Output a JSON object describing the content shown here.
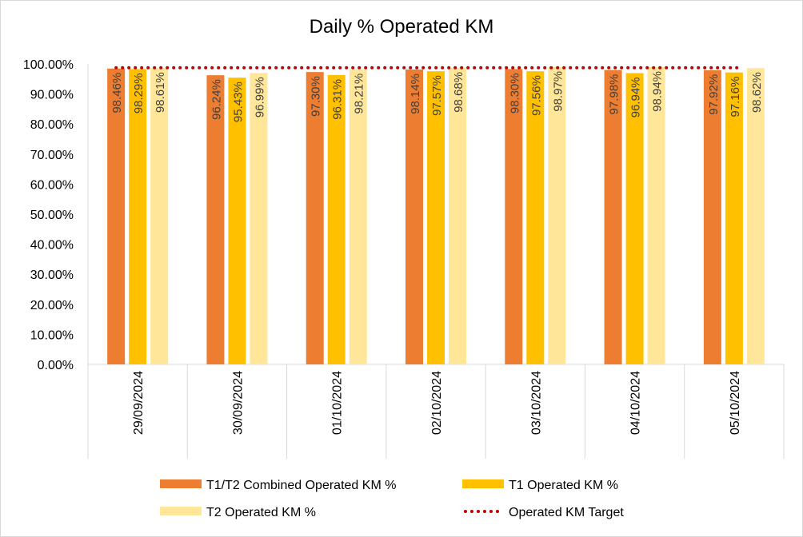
{
  "chart_data": {
    "type": "bar",
    "title": "Daily % Operated KM",
    "categories": [
      "29/09/2024",
      "30/09/2024",
      "01/10/2024",
      "02/10/2024",
      "03/10/2024",
      "04/10/2024",
      "05/10/2024"
    ],
    "series": [
      {
        "name": "T1/T2 Combined Operated KM %",
        "color": "#ED7D31",
        "values": [
          98.46,
          96.24,
          97.3,
          98.14,
          98.3,
          97.98,
          97.92
        ],
        "labels": [
          "98.46%",
          "96.24%",
          "97.30%",
          "98.14%",
          "98.30%",
          "97.98%",
          "97.92%"
        ]
      },
      {
        "name": "T1 Operated KM %",
        "color": "#FFC000",
        "values": [
          98.29,
          95.43,
          96.31,
          97.57,
          97.56,
          96.94,
          97.16
        ],
        "labels": [
          "98.29%",
          "95.43%",
          "96.31%",
          "97.57%",
          "97.56%",
          "96.94%",
          "97.16%"
        ]
      },
      {
        "name": "T2 Operated KM %",
        "color": "#FFE699",
        "values": [
          98.61,
          96.99,
          98.21,
          98.68,
          98.97,
          98.94,
          98.62
        ],
        "labels": [
          "98.61%",
          "96.99%",
          "98.21%",
          "98.68%",
          "98.97%",
          "98.94%",
          "98.62%"
        ]
      }
    ],
    "target": {
      "name": "Operated KM Target",
      "color": "#C00000",
      "style": "dotted",
      "value": 99.0
    },
    "ylim": [
      0,
      100
    ],
    "yticks": [
      0,
      10,
      20,
      30,
      40,
      50,
      60,
      70,
      80,
      90,
      100
    ],
    "ytick_labels": [
      "0.00%",
      "10.00%",
      "20.00%",
      "30.00%",
      "40.00%",
      "50.00%",
      "60.00%",
      "70.00%",
      "80.00%",
      "90.00%",
      "100.00%"
    ],
    "xlabel": "",
    "ylabel": "",
    "grid": false,
    "legend_position": "bottom"
  }
}
